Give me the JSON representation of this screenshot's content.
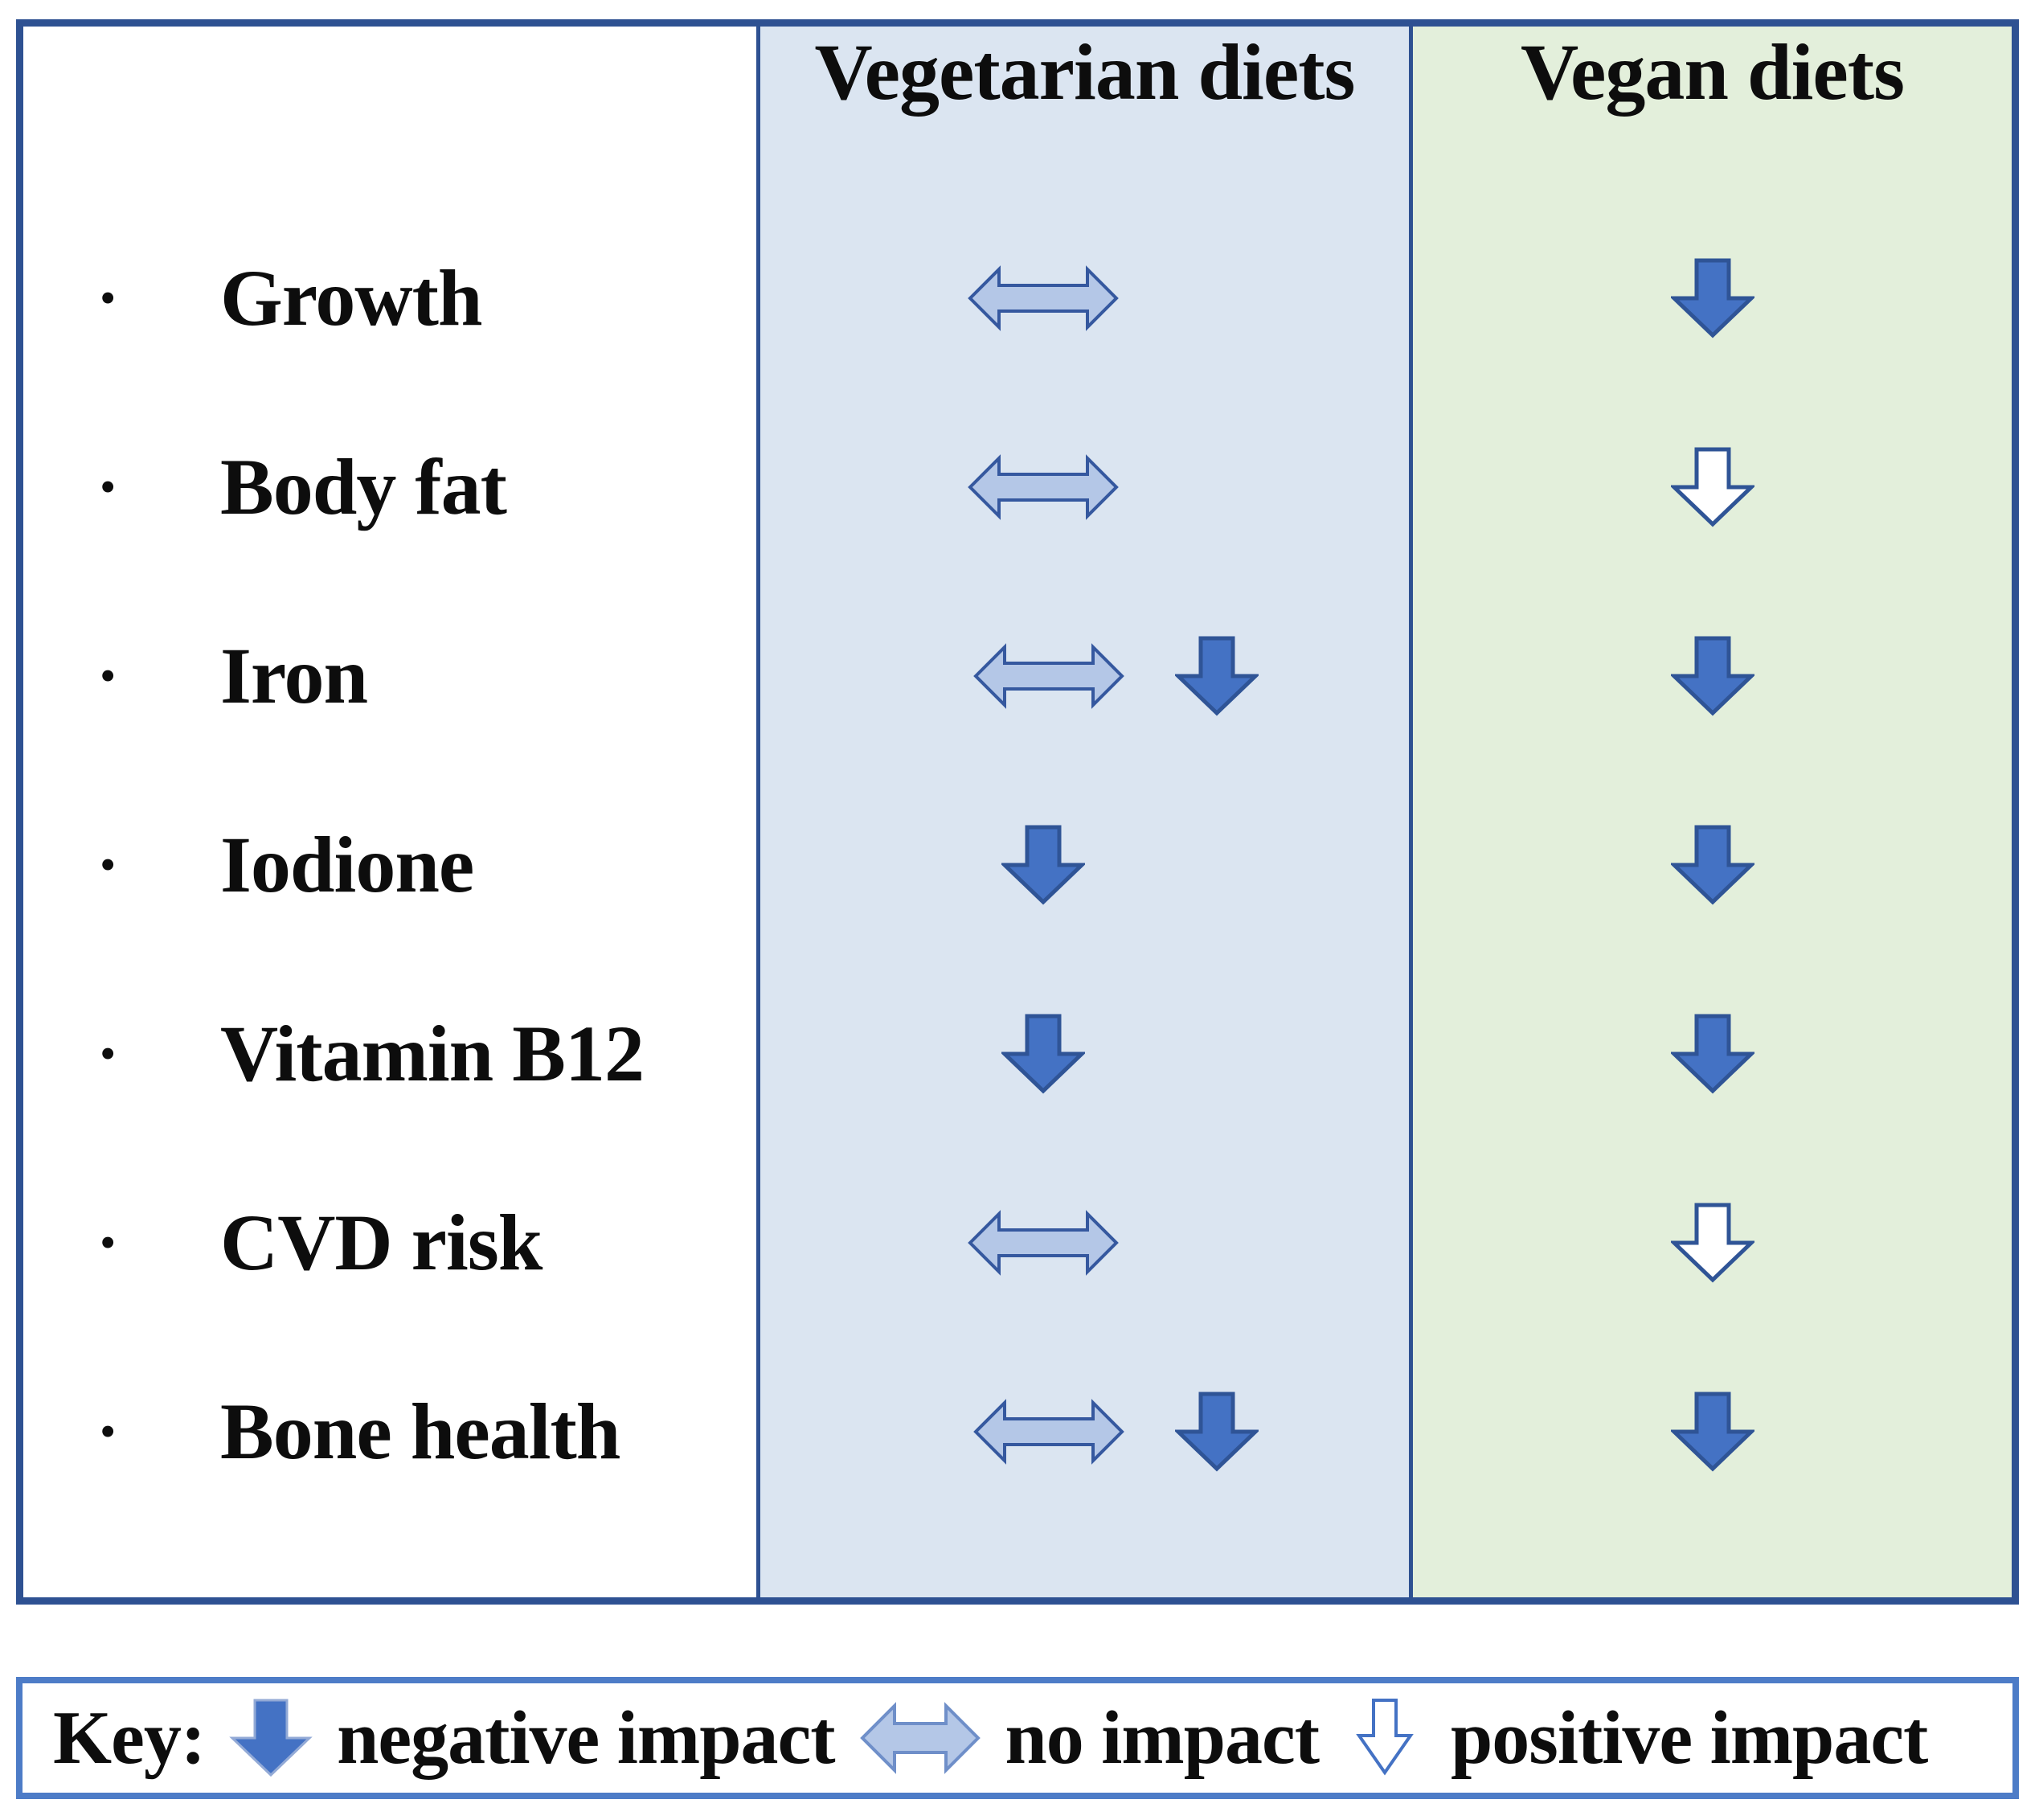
{
  "table": {
    "columns": [
      {
        "label": ""
      },
      {
        "label": "Vegetarian diets"
      },
      {
        "label": "Vegan diets"
      }
    ],
    "rows": [
      {
        "label": "Growth",
        "vegetarian": [
          "no-impact"
        ],
        "vegan": [
          "negative"
        ]
      },
      {
        "label": "Body fat",
        "vegetarian": [
          "no-impact"
        ],
        "vegan": [
          "positive"
        ]
      },
      {
        "label": "Iron",
        "vegetarian": [
          "no-impact",
          "negative"
        ],
        "vegan": [
          "negative"
        ]
      },
      {
        "label": "Iodione",
        "vegetarian": [
          "negative"
        ],
        "vegan": [
          "negative"
        ]
      },
      {
        "label": "Vitamin B12",
        "vegetarian": [
          "negative"
        ],
        "vegan": [
          "negative"
        ]
      },
      {
        "label": "CVD risk",
        "vegetarian": [
          "no-impact"
        ],
        "vegan": [
          "positive"
        ]
      },
      {
        "label": "Bone health",
        "vegetarian": [
          "no-impact",
          "negative"
        ],
        "vegan": [
          "negative"
        ]
      }
    ],
    "bullet_glyph": "●"
  },
  "key": {
    "label": "Key:",
    "items": [
      {
        "icon": "down-arrow-filled-icon",
        "meaning": "negative",
        "text": "negative impact"
      },
      {
        "icon": "double-arrow-icon",
        "meaning": "no-impact",
        "text": "no impact"
      },
      {
        "icon": "down-arrow-outline-icon",
        "meaning": "positive",
        "text": "positive impact"
      }
    ]
  },
  "colors": {
    "table_border": "#2e5192",
    "vegetarian_column_bg": "#dbe5f1",
    "vegan_column_bg": "#e3efdb",
    "negative_arrow_fill": "#4472c4",
    "arrow_stroke": "#2f5496",
    "no_impact_arrow_fill": "#b4c7e7",
    "positive_arrow_fill": "#ffffff",
    "key_border": "#4d7cc7"
  }
}
